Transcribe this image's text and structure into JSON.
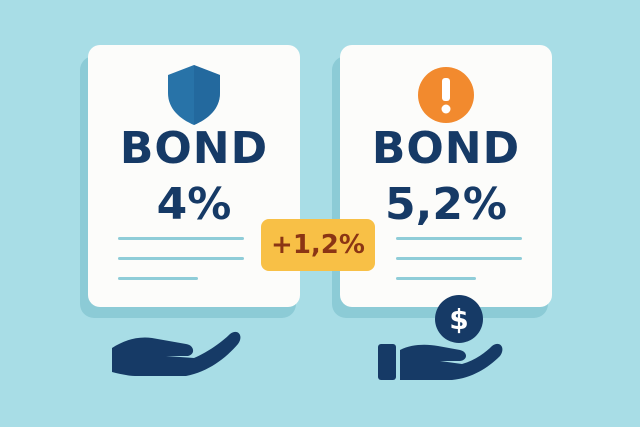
{
  "cards": [
    {
      "title": "BOND",
      "rate": "4%",
      "icon": "shield-icon"
    },
    {
      "title": "BOND",
      "rate": "5,2%",
      "icon": "exclamation-icon"
    }
  ],
  "badge": {
    "label": "+1,2%"
  },
  "icons": {
    "left_hand": "open-hand-icon",
    "right_hand": "hand-holding-coin-icon",
    "coin": "dollar-coin-icon"
  },
  "colors": {
    "background": "#a8dde6",
    "navy": "#163a66",
    "shield_blue": "#2873a8",
    "warning_orange": "#f28a2e",
    "badge_yellow": "#f8c046",
    "badge_text": "#8b3514",
    "line_teal": "#8fcdd8"
  }
}
